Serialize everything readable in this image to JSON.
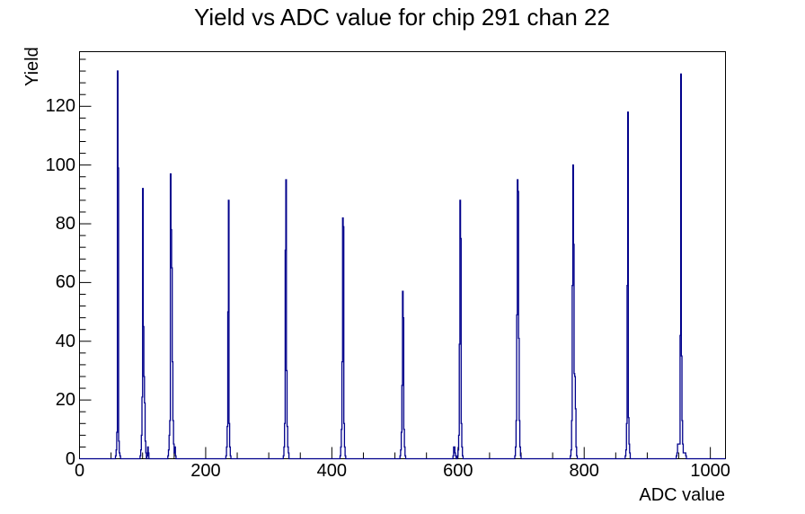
{
  "title": "Yield vs ADC value for chip 291 chan 22",
  "chart_data": {
    "type": "bar",
    "title": "Yield vs ADC value for chip 291 chan 22",
    "xlabel": "ADC value",
    "ylabel": "Yield",
    "xlim": [
      0,
      1024
    ],
    "ylim": [
      0,
      138.6
    ],
    "grid": false,
    "legend": false,
    "line_color": "#00008b",
    "axis_color": "#000000",
    "background_color": "#ffffff",
    "x_ticks": {
      "major": [
        0,
        200,
        400,
        600,
        800,
        1000
      ],
      "labels": [
        "0",
        "200",
        "400",
        "600",
        "800",
        "1000"
      ],
      "minor": [
        50,
        100,
        150,
        250,
        300,
        350,
        450,
        500,
        550,
        650,
        700,
        750,
        850,
        900,
        950
      ]
    },
    "y_ticks": {
      "major": [
        0,
        20,
        40,
        60,
        80,
        100,
        120
      ],
      "labels": [
        "0",
        "20",
        "40",
        "60",
        "80",
        "100",
        "120"
      ],
      "minor": [
        4,
        8,
        12,
        16,
        24,
        28,
        32,
        36,
        44,
        48,
        52,
        56,
        64,
        68,
        72,
        76,
        84,
        88,
        92,
        96,
        104,
        108,
        112,
        116,
        124,
        128,
        132,
        136
      ]
    },
    "peaks_summary": [
      {
        "adc": 60,
        "yield": 132
      },
      {
        "adc": 100,
        "yield": 92
      },
      {
        "adc": 144,
        "yield": 97
      },
      {
        "adc": 236,
        "yield": 88
      },
      {
        "adc": 327,
        "yield": 95
      },
      {
        "adc": 417,
        "yield": 82
      },
      {
        "adc": 512,
        "yield": 57
      },
      {
        "adc": 603,
        "yield": 88
      },
      {
        "adc": 694,
        "yield": 95
      },
      {
        "adc": 782,
        "yield": 100
      },
      {
        "adc": 869,
        "yield": 118
      },
      {
        "adc": 953,
        "yield": 131
      }
    ],
    "bins": [
      [
        57,
        1
      ],
      [
        58,
        3
      ],
      [
        59,
        9
      ],
      [
        60,
        132
      ],
      [
        61,
        99
      ],
      [
        62,
        6
      ],
      [
        63,
        2
      ],
      [
        64,
        1
      ],
      [
        96,
        1
      ],
      [
        97,
        3
      ],
      [
        98,
        8
      ],
      [
        99,
        21
      ],
      [
        100,
        92
      ],
      [
        101,
        45
      ],
      [
        102,
        28
      ],
      [
        103,
        19
      ],
      [
        104,
        6
      ],
      [
        105,
        2
      ],
      [
        107,
        1
      ],
      [
        108,
        4
      ],
      [
        109,
        2
      ],
      [
        140,
        1
      ],
      [
        141,
        3
      ],
      [
        142,
        8
      ],
      [
        143,
        13
      ],
      [
        144,
        97
      ],
      [
        145,
        78
      ],
      [
        146,
        65
      ],
      [
        147,
        33
      ],
      [
        148,
        13
      ],
      [
        149,
        5
      ],
      [
        150,
        2
      ],
      [
        151,
        4
      ],
      [
        152,
        1
      ],
      [
        232,
        1
      ],
      [
        233,
        4
      ],
      [
        234,
        11
      ],
      [
        235,
        50
      ],
      [
        236,
        88
      ],
      [
        237,
        12
      ],
      [
        238,
        4
      ],
      [
        239,
        1
      ],
      [
        323,
        1
      ],
      [
        324,
        4
      ],
      [
        325,
        12
      ],
      [
        326,
        71
      ],
      [
        327,
        95
      ],
      [
        328,
        30
      ],
      [
        329,
        11
      ],
      [
        330,
        4
      ],
      [
        331,
        2
      ],
      [
        413,
        1
      ],
      [
        414,
        4
      ],
      [
        415,
        10
      ],
      [
        416,
        33
      ],
      [
        417,
        82
      ],
      [
        418,
        79
      ],
      [
        419,
        12
      ],
      [
        420,
        4
      ],
      [
        421,
        1
      ],
      [
        508,
        1
      ],
      [
        509,
        3
      ],
      [
        510,
        9
      ],
      [
        511,
        25
      ],
      [
        512,
        57
      ],
      [
        513,
        48
      ],
      [
        514,
        10
      ],
      [
        515,
        4
      ],
      [
        516,
        1
      ],
      [
        592,
        1
      ],
      [
        593,
        4
      ],
      [
        594,
        4
      ],
      [
        595,
        2
      ],
      [
        596,
        1
      ],
      [
        599,
        1
      ],
      [
        600,
        3
      ],
      [
        601,
        8
      ],
      [
        602,
        39
      ],
      [
        603,
        88
      ],
      [
        604,
        75
      ],
      [
        605,
        12
      ],
      [
        606,
        4
      ],
      [
        607,
        1
      ],
      [
        690,
        1
      ],
      [
        691,
        4
      ],
      [
        692,
        13
      ],
      [
        693,
        49
      ],
      [
        694,
        95
      ],
      [
        695,
        91
      ],
      [
        696,
        41
      ],
      [
        697,
        13
      ],
      [
        698,
        4
      ],
      [
        699,
        1
      ],
      [
        778,
        1
      ],
      [
        779,
        3
      ],
      [
        780,
        13
      ],
      [
        781,
        59
      ],
      [
        782,
        100
      ],
      [
        783,
        73
      ],
      [
        784,
        29
      ],
      [
        785,
        28
      ],
      [
        786,
        17
      ],
      [
        787,
        4
      ],
      [
        788,
        1
      ],
      [
        865,
        1
      ],
      [
        866,
        3
      ],
      [
        867,
        12
      ],
      [
        868,
        59
      ],
      [
        869,
        118
      ],
      [
        870,
        14
      ],
      [
        871,
        5
      ],
      [
        872,
        2
      ],
      [
        946,
        1
      ],
      [
        947,
        2
      ],
      [
        948,
        5
      ],
      [
        949,
        5
      ],
      [
        950,
        5
      ],
      [
        951,
        5
      ],
      [
        952,
        42
      ],
      [
        953,
        131
      ],
      [
        954,
        35
      ],
      [
        955,
        13
      ],
      [
        956,
        5
      ],
      [
        957,
        2
      ],
      [
        958,
        2
      ],
      [
        959,
        2
      ],
      [
        960,
        2
      ],
      [
        961,
        1
      ]
    ]
  }
}
